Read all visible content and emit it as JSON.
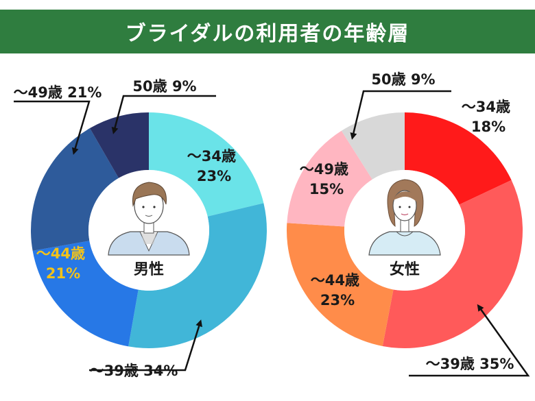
{
  "header": {
    "title": "ブライダルの利用者の年齢層"
  },
  "chart_data": [
    {
      "type": "pie",
      "center_label": "男性",
      "categories": [
        "～34歳",
        "～39歳",
        "～44歳",
        "～49歳",
        "50歳"
      ],
      "values": [
        23,
        34,
        21,
        21,
        9
      ],
      "colors": [
        "#6ae3e8",
        "#41b6d8",
        "#2778e6",
        "#2e5b9b",
        "#2a3368"
      ],
      "labels": [
        {
          "line1": "～34歳",
          "line2": "23%",
          "color": "#1a1a1a"
        },
        {
          "line1": "～39歳 34%",
          "line2": "",
          "color": "#1a1a1a"
        },
        {
          "line1": "～44歳",
          "line2": "21%",
          "color": "#f2c21b"
        },
        {
          "line1": "～49歳 21%",
          "line2": "",
          "color": "#1a1a1a"
        },
        {
          "line1": "50歳 9%",
          "line2": "",
          "color": "#1a1a1a"
        }
      ]
    },
    {
      "type": "pie",
      "center_label": "女性",
      "categories": [
        "～34歳",
        "～39歳",
        "～44歳",
        "～49歳",
        "50歳"
      ],
      "values": [
        18,
        35,
        23,
        15,
        9
      ],
      "colors": [
        "#ff1a1a",
        "#ff5a5a",
        "#ff8c4a",
        "#ffb6c1",
        "#d8d8d8"
      ],
      "labels": [
        {
          "line1": "～34歳",
          "line2": "18%",
          "color": "#1a1a1a"
        },
        {
          "line1": "～39歳 35%",
          "line2": "",
          "color": "#1a1a1a"
        },
        {
          "line1": "～44歳",
          "line2": "23%",
          "color": "#1a1a1a"
        },
        {
          "line1": "～49歳",
          "line2": "15%",
          "color": "#1a1a1a"
        },
        {
          "line1": "50歳 9%",
          "line2": "",
          "color": "#1a1a1a"
        }
      ]
    }
  ]
}
